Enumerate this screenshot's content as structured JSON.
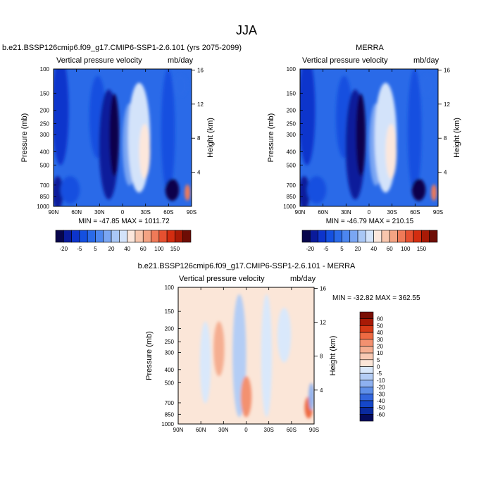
{
  "page": {
    "title": "JJA"
  },
  "panels": [
    {
      "id": "model",
      "title": "b.e21.BSSP126cmip6.f09_g17.CMIP6-SSP1-2.6.101 (yrs 2075-2099)",
      "left_label": "Vertical pressure velocity",
      "right_label": "mb/day",
      "stats": "MIN = -47.85   MAX = 1011.72"
    },
    {
      "id": "obs",
      "title": "MERRA",
      "left_label": "Vertical pressure velocity",
      "right_label": "mb/day",
      "stats": "MIN = -46.79   MAX = 210.15"
    },
    {
      "id": "diff",
      "title": "b.e21.BSSP126cmip6.f09_g17.CMIP6-SSP1-2.6.101 - MERRA",
      "left_label": "Vertical pressure velocity",
      "right_label": "mb/day",
      "stats": "MIN = -32.82  MAX = 362.55"
    }
  ],
  "chart_data": [
    {
      "type": "heatmap",
      "panel": "model",
      "ylabel": "Pressure (mb)",
      "y2label": "Height (km)",
      "x_ticks": [
        "90N",
        "60N",
        "30N",
        "0",
        "30S",
        "60S",
        "90S"
      ],
      "y_ticks": [
        100,
        150,
        200,
        250,
        300,
        400,
        500,
        700,
        850,
        1000
      ],
      "y2_ticks": [
        4,
        8,
        12,
        16
      ],
      "ylim": [
        1000,
        100
      ],
      "xlim": [
        "90N",
        "90S"
      ],
      "y_scale": "log",
      "colorbar": {
        "levels": [
          -20,
          -15,
          -10,
          -5,
          0,
          5,
          10,
          15,
          20,
          30,
          40,
          50,
          60,
          80,
          100,
          120,
          150
        ],
        "tick_labels": [
          "-20",
          "-5",
          "5",
          "20",
          "40",
          "60",
          "100",
          "150"
        ]
      }
    },
    {
      "type": "heatmap",
      "panel": "obs",
      "ylabel": "Pressure (mb)",
      "y2label": "Height (km)",
      "x_ticks": [
        "90N",
        "60N",
        "30N",
        "0",
        "30S",
        "60S",
        "90S"
      ],
      "y_ticks": [
        100,
        150,
        200,
        250,
        300,
        400,
        500,
        700,
        850,
        1000
      ],
      "y2_ticks": [
        4,
        8,
        12,
        16
      ],
      "ylim": [
        1000,
        100
      ],
      "xlim": [
        "90N",
        "90S"
      ],
      "y_scale": "log",
      "colorbar": {
        "levels": [
          -20,
          -15,
          -10,
          -5,
          0,
          5,
          10,
          15,
          20,
          30,
          40,
          50,
          60,
          80,
          100,
          120,
          150
        ],
        "tick_labels": [
          "-20",
          "-5",
          "5",
          "20",
          "40",
          "60",
          "100",
          "150"
        ]
      }
    },
    {
      "type": "heatmap",
      "panel": "diff",
      "ylabel": "Pressure (mb)",
      "y2label": "Height (km)",
      "x_ticks": [
        "90N",
        "60N",
        "30N",
        "0",
        "30S",
        "60S",
        "90S"
      ],
      "y_ticks": [
        100,
        150,
        200,
        250,
        300,
        400,
        500,
        700,
        850,
        1000
      ],
      "y2_ticks": [
        4,
        8,
        12,
        16
      ],
      "ylim": [
        1000,
        100
      ],
      "xlim": [
        "90N",
        "90S"
      ],
      "y_scale": "log",
      "colorbar": {
        "levels": [
          60,
          50,
          40,
          30,
          20,
          10,
          5,
          0,
          -5,
          -10,
          -20,
          -30,
          -40,
          -50,
          -60
        ],
        "tick_labels": [
          "60",
          "50",
          "40",
          "30",
          "20",
          "10",
          "5",
          "0",
          "-5",
          "-10",
          "-20",
          "-30",
          "-40",
          "-50",
          "-60"
        ]
      }
    }
  ],
  "colors": {
    "seq_scale": [
      "#08064c",
      "#0a1b9b",
      "#0d34cc",
      "#1450e0",
      "#2a6ae8",
      "#4c86ef",
      "#7aa6f3",
      "#a9c7f6",
      "#d3e3fa",
      "#fce7dc",
      "#f8c6ad",
      "#f4a383",
      "#ef7a58",
      "#e65030",
      "#d32d10",
      "#a81a06",
      "#6e0d05"
    ],
    "div_scale": [
      "#7a0f05",
      "#a81a06",
      "#d63a17",
      "#ee6a43",
      "#f39170",
      "#f5ae91",
      "#f8c9b3",
      "#fbe6d8",
      "#d9e8fb",
      "#b4cdf5",
      "#8eb1f0",
      "#5f8fe8",
      "#3366dd",
      "#1547c8",
      "#0a2a9e",
      "#050b5c"
    ]
  }
}
